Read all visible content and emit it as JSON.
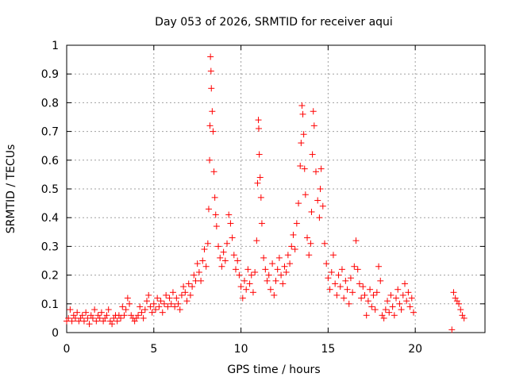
{
  "chart_data": {
    "type": "scatter",
    "title": "Day 053 of 2026, SRMTID for receiver aqui",
    "xlabel": "GPS time / hours",
    "ylabel": "SRMTID / TECUs",
    "xlim": [
      0,
      24
    ],
    "ylim": [
      0,
      1
    ],
    "xticks": [
      0,
      5,
      10,
      15,
      20
    ],
    "xtick_labels": [
      "0",
      "5",
      "10",
      "15",
      "20"
    ],
    "yticks": [
      0,
      0.1,
      0.2,
      0.3,
      0.4,
      0.5,
      0.6,
      0.7,
      0.8,
      0.9,
      1
    ],
    "ytick_labels": [
      "0",
      "0.1",
      "0.2",
      "0.3",
      "0.4",
      "0.5",
      "0.6",
      "0.7",
      "0.8",
      "0.9",
      "1"
    ],
    "grid": true,
    "marker": "plus",
    "color": "#ff0000",
    "series": [
      {
        "name": "SRMTID",
        "points": [
          [
            0.0,
            0.04
          ],
          [
            0.1,
            0.05
          ],
          [
            0.2,
            0.08
          ],
          [
            0.3,
            0.04
          ],
          [
            0.4,
            0.06
          ],
          [
            0.5,
            0.05
          ],
          [
            0.6,
            0.07
          ],
          [
            0.7,
            0.04
          ],
          [
            0.8,
            0.05
          ],
          [
            0.9,
            0.06
          ],
          [
            1.0,
            0.04
          ],
          [
            1.1,
            0.07
          ],
          [
            1.2,
            0.05
          ],
          [
            1.3,
            0.03
          ],
          [
            1.4,
            0.06
          ],
          [
            1.5,
            0.05
          ],
          [
            1.6,
            0.08
          ],
          [
            1.7,
            0.04
          ],
          [
            1.8,
            0.06
          ],
          [
            1.9,
            0.05
          ],
          [
            2.0,
            0.07
          ],
          [
            2.1,
            0.04
          ],
          [
            2.2,
            0.05
          ],
          [
            2.3,
            0.06
          ],
          [
            2.4,
            0.08
          ],
          [
            2.5,
            0.04
          ],
          [
            2.6,
            0.03
          ],
          [
            2.7,
            0.05
          ],
          [
            2.8,
            0.06
          ],
          [
            2.9,
            0.04
          ],
          [
            3.0,
            0.06
          ],
          [
            3.1,
            0.05
          ],
          [
            3.2,
            0.09
          ],
          [
            3.3,
            0.06
          ],
          [
            3.4,
            0.08
          ],
          [
            3.5,
            0.12
          ],
          [
            3.6,
            0.1
          ],
          [
            3.7,
            0.06
          ],
          [
            3.8,
            0.05
          ],
          [
            3.9,
            0.04
          ],
          [
            4.0,
            0.05
          ],
          [
            4.1,
            0.06
          ],
          [
            4.2,
            0.09
          ],
          [
            4.3,
            0.07
          ],
          [
            4.4,
            0.05
          ],
          [
            4.5,
            0.08
          ],
          [
            4.6,
            0.11
          ],
          [
            4.7,
            0.13
          ],
          [
            4.8,
            0.09
          ],
          [
            4.9,
            0.07
          ],
          [
            5.0,
            0.1
          ],
          [
            5.1,
            0.08
          ],
          [
            5.2,
            0.12
          ],
          [
            5.3,
            0.09
          ],
          [
            5.4,
            0.11
          ],
          [
            5.5,
            0.07
          ],
          [
            5.6,
            0.1
          ],
          [
            5.7,
            0.13
          ],
          [
            5.8,
            0.09
          ],
          [
            5.9,
            0.12
          ],
          [
            6.0,
            0.1
          ],
          [
            6.1,
            0.14
          ],
          [
            6.2,
            0.09
          ],
          [
            6.3,
            0.12
          ],
          [
            6.4,
            0.1
          ],
          [
            6.5,
            0.08
          ],
          [
            6.6,
            0.13
          ],
          [
            6.7,
            0.16
          ],
          [
            6.8,
            0.14
          ],
          [
            6.9,
            0.11
          ],
          [
            7.0,
            0.17
          ],
          [
            7.1,
            0.13
          ],
          [
            7.2,
            0.16
          ],
          [
            7.3,
            0.2
          ],
          [
            7.4,
            0.18
          ],
          [
            7.5,
            0.24
          ],
          [
            7.6,
            0.21
          ],
          [
            7.7,
            0.18
          ],
          [
            7.8,
            0.25
          ],
          [
            7.9,
            0.29
          ],
          [
            8.0,
            0.23
          ],
          [
            8.1,
            0.31
          ],
          [
            8.15,
            0.43
          ],
          [
            8.2,
            0.6
          ],
          [
            8.22,
            0.72
          ],
          [
            8.25,
            0.96
          ],
          [
            8.28,
            0.91
          ],
          [
            8.3,
            0.85
          ],
          [
            8.35,
            0.77
          ],
          [
            8.4,
            0.7
          ],
          [
            8.45,
            0.56
          ],
          [
            8.5,
            0.47
          ],
          [
            8.55,
            0.41
          ],
          [
            8.6,
            0.37
          ],
          [
            8.7,
            0.3
          ],
          [
            8.8,
            0.26
          ],
          [
            8.9,
            0.23
          ],
          [
            9.0,
            0.28
          ],
          [
            9.1,
            0.25
          ],
          [
            9.2,
            0.31
          ],
          [
            9.3,
            0.41
          ],
          [
            9.4,
            0.38
          ],
          [
            9.5,
            0.33
          ],
          [
            9.6,
            0.27
          ],
          [
            9.7,
            0.22
          ],
          [
            9.8,
            0.25
          ],
          [
            9.9,
            0.2
          ],
          [
            10.0,
            0.16
          ],
          [
            10.1,
            0.12
          ],
          [
            10.2,
            0.18
          ],
          [
            10.3,
            0.15
          ],
          [
            10.4,
            0.22
          ],
          [
            10.5,
            0.17
          ],
          [
            10.6,
            0.2
          ],
          [
            10.7,
            0.14
          ],
          [
            10.8,
            0.21
          ],
          [
            10.9,
            0.32
          ],
          [
            10.95,
            0.52
          ],
          [
            11.0,
            0.74
          ],
          [
            11.02,
            0.71
          ],
          [
            11.05,
            0.62
          ],
          [
            11.1,
            0.54
          ],
          [
            11.15,
            0.47
          ],
          [
            11.2,
            0.38
          ],
          [
            11.3,
            0.26
          ],
          [
            11.4,
            0.22
          ],
          [
            11.5,
            0.18
          ],
          [
            11.6,
            0.2
          ],
          [
            11.7,
            0.15
          ],
          [
            11.8,
            0.24
          ],
          [
            11.9,
            0.13
          ],
          [
            12.0,
            0.18
          ],
          [
            12.1,
            0.22
          ],
          [
            12.2,
            0.26
          ],
          [
            12.3,
            0.2
          ],
          [
            12.4,
            0.17
          ],
          [
            12.5,
            0.23
          ],
          [
            12.6,
            0.21
          ],
          [
            12.7,
            0.27
          ],
          [
            12.8,
            0.24
          ],
          [
            12.9,
            0.3
          ],
          [
            13.0,
            0.34
          ],
          [
            13.1,
            0.29
          ],
          [
            13.2,
            0.38
          ],
          [
            13.3,
            0.45
          ],
          [
            13.4,
            0.58
          ],
          [
            13.45,
            0.66
          ],
          [
            13.5,
            0.79
          ],
          [
            13.55,
            0.76
          ],
          [
            13.6,
            0.69
          ],
          [
            13.65,
            0.57
          ],
          [
            13.7,
            0.48
          ],
          [
            13.8,
            0.33
          ],
          [
            13.9,
            0.27
          ],
          [
            14.0,
            0.31
          ],
          [
            14.05,
            0.42
          ],
          [
            14.1,
            0.62
          ],
          [
            14.15,
            0.77
          ],
          [
            14.2,
            0.72
          ],
          [
            14.3,
            0.56
          ],
          [
            14.4,
            0.46
          ],
          [
            14.5,
            0.4
          ],
          [
            14.55,
            0.5
          ],
          [
            14.6,
            0.57
          ],
          [
            14.7,
            0.44
          ],
          [
            14.8,
            0.31
          ],
          [
            14.9,
            0.24
          ],
          [
            15.0,
            0.19
          ],
          [
            15.1,
            0.15
          ],
          [
            15.2,
            0.21
          ],
          [
            15.3,
            0.27
          ],
          [
            15.4,
            0.17
          ],
          [
            15.5,
            0.13
          ],
          [
            15.6,
            0.2
          ],
          [
            15.7,
            0.16
          ],
          [
            15.8,
            0.22
          ],
          [
            15.9,
            0.12
          ],
          [
            16.0,
            0.18
          ],
          [
            16.1,
            0.15
          ],
          [
            16.2,
            0.1
          ],
          [
            16.3,
            0.19
          ],
          [
            16.4,
            0.14
          ],
          [
            16.5,
            0.23
          ],
          [
            16.6,
            0.32
          ],
          [
            16.7,
            0.22
          ],
          [
            16.8,
            0.17
          ],
          [
            16.9,
            0.12
          ],
          [
            17.0,
            0.16
          ],
          [
            17.1,
            0.13
          ],
          [
            17.2,
            0.06
          ],
          [
            17.3,
            0.11
          ],
          [
            17.4,
            0.15
          ],
          [
            17.5,
            0.09
          ],
          [
            17.6,
            0.13
          ],
          [
            17.7,
            0.08
          ],
          [
            17.8,
            0.14
          ],
          [
            17.9,
            0.23
          ],
          [
            18.0,
            0.18
          ],
          [
            18.1,
            0.06
          ],
          [
            18.2,
            0.05
          ],
          [
            18.3,
            0.08
          ],
          [
            18.4,
            0.11
          ],
          [
            18.5,
            0.07
          ],
          [
            18.6,
            0.13
          ],
          [
            18.7,
            0.09
          ],
          [
            18.8,
            0.06
          ],
          [
            18.9,
            0.12
          ],
          [
            19.0,
            0.15
          ],
          [
            19.1,
            0.1
          ],
          [
            19.2,
            0.08
          ],
          [
            19.3,
            0.13
          ],
          [
            19.4,
            0.17
          ],
          [
            19.5,
            0.11
          ],
          [
            19.6,
            0.14
          ],
          [
            19.7,
            0.09
          ],
          [
            19.8,
            0.12
          ],
          [
            19.9,
            0.07
          ],
          [
            22.1,
            0.01
          ],
          [
            22.2,
            0.14
          ],
          [
            22.3,
            0.12
          ],
          [
            22.4,
            0.11
          ],
          [
            22.5,
            0.1
          ],
          [
            22.6,
            0.08
          ],
          [
            22.7,
            0.06
          ],
          [
            22.8,
            0.05
          ]
        ]
      }
    ]
  }
}
